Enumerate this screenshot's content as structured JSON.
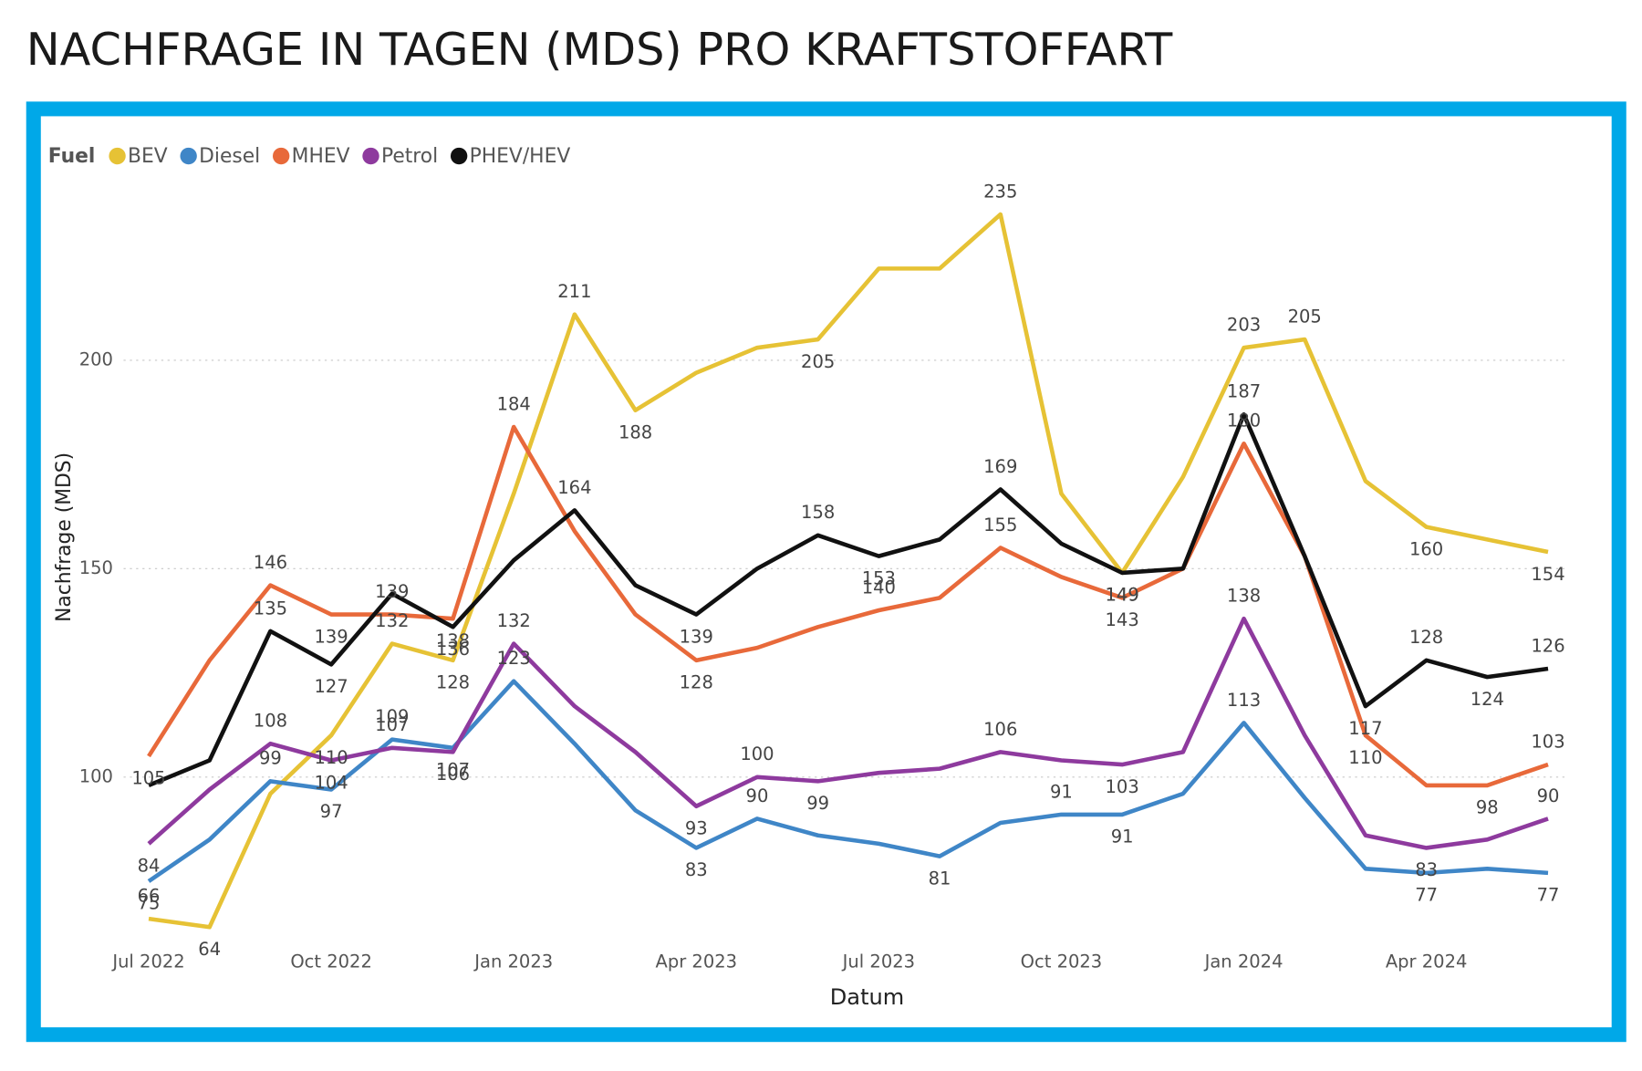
{
  "chart_data": {
    "type": "line",
    "title": "NACHFRAGE IN TAGEN (MDS) PRO KRAFTSTOFFART",
    "x_label": "Datum",
    "y_label": "Nachfrage (MDS)",
    "legend_title": "Fuel",
    "legend": "top-left",
    "grid": true,
    "categories": [
      "Jul 2022",
      null,
      null,
      "Oct 2022",
      null,
      null,
      "Jan 2023",
      null,
      null,
      "Apr 2023",
      null,
      null,
      "Jul 2023",
      null,
      null,
      "Oct 2023",
      null,
      null,
      "Jan 2024",
      null,
      null,
      "Apr 2024",
      null,
      null
    ],
    "ylim": [
      60,
      240
    ],
    "yticks": [
      100,
      150,
      200
    ],
    "series": [
      {
        "name": "BEV",
        "color": "#e6c235",
        "values": [
          66,
          64,
          96,
          110,
          132,
          128,
          168,
          211,
          188,
          197,
          203,
          205,
          222,
          222,
          235,
          168,
          149,
          172,
          203,
          205,
          171,
          160,
          157,
          154
        ],
        "value_labels": [
          "66",
          "64",
          null,
          "110",
          "132",
          "128",
          null,
          "211",
          "188",
          null,
          null,
          "205",
          null,
          null,
          "235",
          null,
          "149",
          null,
          "203",
          "205",
          null,
          "160",
          null,
          "154"
        ]
      },
      {
        "name": "Diesel",
        "color": "#3f86c7",
        "values": [
          75,
          85,
          99,
          97,
          109,
          107,
          123,
          108,
          92,
          83,
          90,
          86,
          84,
          81,
          89,
          91,
          91,
          96,
          113,
          95,
          78,
          77,
          78,
          77
        ],
        "value_labels": [
          "75",
          null,
          "99",
          "97",
          "109",
          "107",
          "123",
          null,
          null,
          "83",
          "90",
          null,
          null,
          "81",
          null,
          "91",
          "91",
          null,
          "113",
          null,
          null,
          "77",
          null,
          "77"
        ]
      },
      {
        "name": "MHEV",
        "color": "#e8693a",
        "values": [
          105,
          128,
          146,
          139,
          139,
          138,
          184,
          159,
          139,
          128,
          131,
          136,
          140,
          143,
          155,
          148,
          143,
          150,
          180,
          153,
          110,
          98,
          98,
          103
        ],
        "value_labels": [
          "105",
          null,
          "146",
          "139",
          "139",
          "138",
          "184",
          null,
          null,
          "128",
          null,
          null,
          "140",
          null,
          "155",
          null,
          "143",
          null,
          "180",
          null,
          "110",
          null,
          "98",
          "103"
        ]
      },
      {
        "name": "Petrol",
        "color": "#8e3a9e",
        "values": [
          84,
          97,
          108,
          104,
          107,
          106,
          132,
          117,
          106,
          93,
          100,
          99,
          101,
          102,
          106,
          104,
          103,
          106,
          138,
          110,
          86,
          83,
          85,
          90
        ],
        "value_labels": [
          "84",
          null,
          "108",
          "104",
          "107",
          "106",
          "132",
          null,
          null,
          "93",
          "100",
          "99",
          null,
          null,
          "106",
          null,
          "103",
          null,
          "138",
          null,
          null,
          "83",
          null,
          "90"
        ]
      },
      {
        "name": "PHEV/HEV",
        "color": "#111111",
        "values": [
          98,
          104,
          135,
          127,
          144,
          136,
          152,
          164,
          146,
          139,
          150,
          158,
          153,
          157,
          169,
          156,
          149,
          150,
          187,
          153,
          117,
          128,
          124,
          126
        ],
        "value_labels": [
          null,
          null,
          "135",
          "127",
          null,
          "136",
          null,
          "164",
          null,
          "139",
          null,
          "158",
          "153",
          null,
          "169",
          null,
          "149",
          null,
          "187",
          null,
          "117",
          "128",
          "124",
          "126"
        ]
      }
    ]
  }
}
